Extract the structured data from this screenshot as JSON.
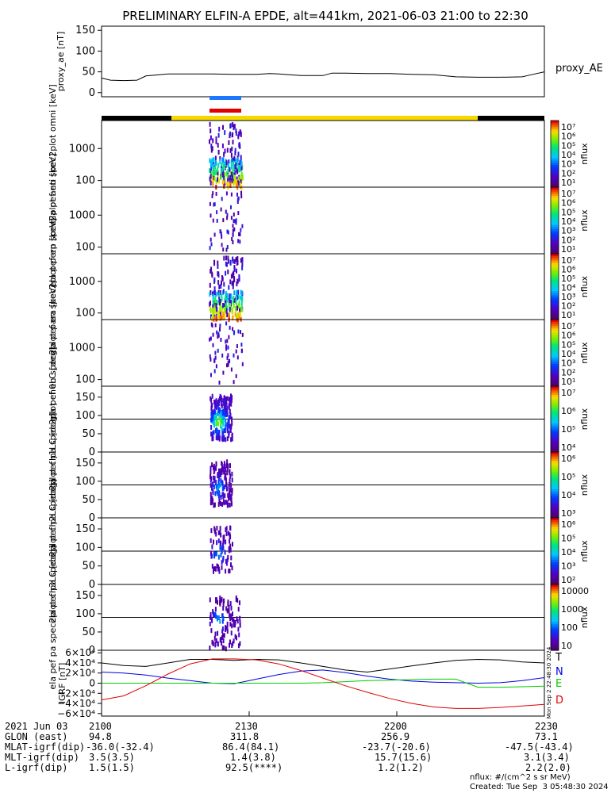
{
  "title": "PRELIMINARY ELFIN-A EPDE, alt=441km, 2021-06-03 21:00 to 22:30",
  "colors": {
    "line": "#000000",
    "blue": "#1f77ff",
    "red": "#e00000",
    "yellow": "#f5d800",
    "green": "#00b000",
    "purple": "#3a0a6a"
  },
  "chart_data": [
    {
      "type": "line",
      "name": "proxy_ae",
      "ylabel": [
        "proxy_ae",
        "[nT]"
      ],
      "ylim": [
        -10,
        160
      ],
      "yticks": [
        "150",
        "100",
        "50",
        "0"
      ],
      "legend": "proxy_AE",
      "x": [
        0,
        0.02,
        0.05,
        0.08,
        0.1,
        0.15,
        0.2,
        0.25,
        0.3,
        0.35,
        0.38,
        0.4,
        0.45,
        0.5,
        0.52,
        0.55,
        0.6,
        0.65,
        0.7,
        0.75,
        0.8,
        0.85,
        0.9,
        0.95,
        0.97,
        1.0
      ],
      "values": [
        35,
        30,
        29,
        30,
        40,
        45,
        45,
        45,
        44,
        44,
        46,
        45,
        41,
        41,
        47,
        47,
        46,
        46,
        44,
        43,
        38,
        37,
        37,
        38,
        43,
        50
      ]
    },
    {
      "type": "heatmap",
      "name": "omni spectrogram",
      "ylabel": [
        "ela",
        "pef",
        "en",
        "spec2plot",
        "omni",
        "[keV]"
      ],
      "yticks": [
        "1000",
        "100"
      ],
      "colorbar": [
        "10⁷",
        "10⁶",
        "10⁵",
        "10⁴",
        "10³",
        "10²",
        "10¹"
      ],
      "cbar_label": "nflux"
    },
    {
      "type": "heatmap",
      "name": "anti spectrogram",
      "ylabel": [
        "ela",
        "pef",
        "en",
        "spec2plot",
        "anti",
        "[keV]"
      ],
      "yticks": [
        "1000",
        "100"
      ],
      "colorbar": [
        "10⁷",
        "10⁶",
        "10⁵",
        "10⁴",
        "10³",
        "10²",
        "10¹"
      ],
      "cbar_label": "nflux"
    },
    {
      "type": "heatmap",
      "name": "perp spectrogram",
      "ylabel": [
        "ela",
        "pef",
        "en",
        "spec2plot",
        "perp",
        "[keV]"
      ],
      "yticks": [
        "1000",
        "100"
      ],
      "colorbar": [
        "10⁷",
        "10⁶",
        "10⁵",
        "10⁴",
        "10³",
        "10²",
        "10¹"
      ],
      "cbar_label": "nflux"
    },
    {
      "type": "heatmap",
      "name": "para spectrogram",
      "ylabel": [
        "ela",
        "pef",
        "en",
        "spec2plot",
        "para",
        "[keV]"
      ],
      "yticks": [
        "1000",
        "100"
      ],
      "colorbar": [
        "10⁷",
        "10⁶",
        "10⁵",
        "10⁴",
        "10³",
        "10²",
        "10¹"
      ],
      "cbar_label": "nflux"
    },
    {
      "type": "heatmap",
      "name": "ch0LC pitch angle",
      "ylabel": [
        "ela",
        "pef",
        "pa",
        "spec2plot",
        "ch0LC",
        "[deg]"
      ],
      "yticks": [
        "150",
        "100",
        "50",
        "0"
      ],
      "colorbar": [
        "10⁷",
        "10⁶",
        "10⁵",
        "10⁴"
      ],
      "cbar_label": "nflux"
    },
    {
      "type": "heatmap",
      "name": "ch1LC pitch angle",
      "ylabel": [
        "ela",
        "pef",
        "pa",
        "spec2plot",
        "ch1LC",
        "[deg]"
      ],
      "yticks": [
        "150",
        "100",
        "50",
        "0"
      ],
      "colorbar": [
        "10⁶",
        "10⁵",
        "10⁴",
        "10³"
      ],
      "cbar_label": "nflux"
    },
    {
      "type": "heatmap",
      "name": "ch2LC pitch angle",
      "ylabel": [
        "ela",
        "pef",
        "pa",
        "spec2plot",
        "ch2LC",
        "[deg]"
      ],
      "yticks": [
        "150",
        "100",
        "50",
        "0"
      ],
      "colorbar": [
        "10⁶",
        "10⁵",
        "10⁴",
        "10³",
        "10²"
      ],
      "cbar_label": "nflux"
    },
    {
      "type": "heatmap",
      "name": "ch3LC pitch angle",
      "ylabel": [
        "ela",
        "pef",
        "pa",
        "spec2plot",
        "ch3LC",
        "[deg]"
      ],
      "yticks": [
        "150",
        "100",
        "50",
        "0"
      ],
      "colorbar": [
        "10000",
        "1000",
        "100",
        "10"
      ],
      "cbar_label": "nflux"
    },
    {
      "type": "line",
      "name": "IGRF",
      "ylabel": [
        "IGRF",
        "[nT]"
      ],
      "ylim": [
        -65000,
        65000
      ],
      "yticks": [
        "6×10⁴",
        "4×10⁴",
        "2×10⁴",
        "0",
        "−2×10⁴",
        "−4×10⁴",
        "−6×10⁴"
      ],
      "x": [
        0,
        0.05,
        0.1,
        0.15,
        0.2,
        0.25,
        0.3,
        0.35,
        0.4,
        0.45,
        0.5,
        0.55,
        0.6,
        0.65,
        0.7,
        0.75,
        0.8,
        0.85,
        0.9,
        0.95,
        1.0
      ],
      "series": [
        {
          "name": "T",
          "color": "#000000",
          "values": [
            40000,
            35000,
            33000,
            40000,
            47000,
            47000,
            45000,
            47000,
            46000,
            40000,
            33000,
            26000,
            22000,
            28000,
            34000,
            40000,
            45000,
            47000,
            46000,
            42000,
            40000
          ]
        },
        {
          "name": "N",
          "color": "#0000e0",
          "values": [
            22000,
            20000,
            16000,
            10000,
            5000,
            0,
            -1000,
            8000,
            17000,
            24000,
            26000,
            21000,
            14000,
            8000,
            4000,
            2000,
            1000,
            0,
            1000,
            5000,
            11000
          ]
        },
        {
          "name": "E",
          "color": "#00cc00",
          "values": [
            0,
            0,
            0,
            0,
            0,
            0,
            0,
            0,
            0,
            0,
            1000,
            3000,
            5000,
            6000,
            7000,
            8000,
            8000,
            -8000,
            -8000,
            -7000,
            -6000
          ]
        },
        {
          "name": "D",
          "color": "#e00000",
          "values": [
            -33000,
            -25000,
            -5000,
            18000,
            38000,
            48000,
            48000,
            46000,
            38000,
            25000,
            10000,
            -5000,
            -18000,
            -30000,
            -40000,
            -47000,
            -50000,
            -50000,
            -48000,
            -45000,
            -42000
          ]
        }
      ]
    }
  ],
  "footer": {
    "rows": [
      {
        "label": "2021 Jun 03",
        "vals": [
          "2100",
          "2130",
          "2200",
          "2230"
        ]
      },
      {
        "label": "GLON (east)",
        "vals": [
          "94.8",
          "311.8",
          "256.9",
          "73.1"
        ]
      },
      {
        "label": "MLAT-igrf(dip)",
        "vals": [
          "-36.0(-32.4)",
          "86.4(84.1)",
          "-23.7(-20.6)",
          "-47.5(-43.4)"
        ]
      },
      {
        "label": "MLT-igrf(dip)",
        "vals": [
          "3.5(3.5)",
          "1.4(3.8)",
          "15.7(15.6)",
          "3.1(3.4)"
        ]
      },
      {
        "label": "L-igrf(dip)",
        "vals": [
          "1.5(1.5)",
          "92.5(****)",
          "1.2(1.2)",
          "2.2(2.0)"
        ]
      }
    ],
    "units": "nflux: #/(cm^2 s sr MeV)",
    "created": "Created: Tue Sep  3 05:48:30 2024",
    "side_stamp": "Mon Sep  2 22:48:30 2024"
  }
}
